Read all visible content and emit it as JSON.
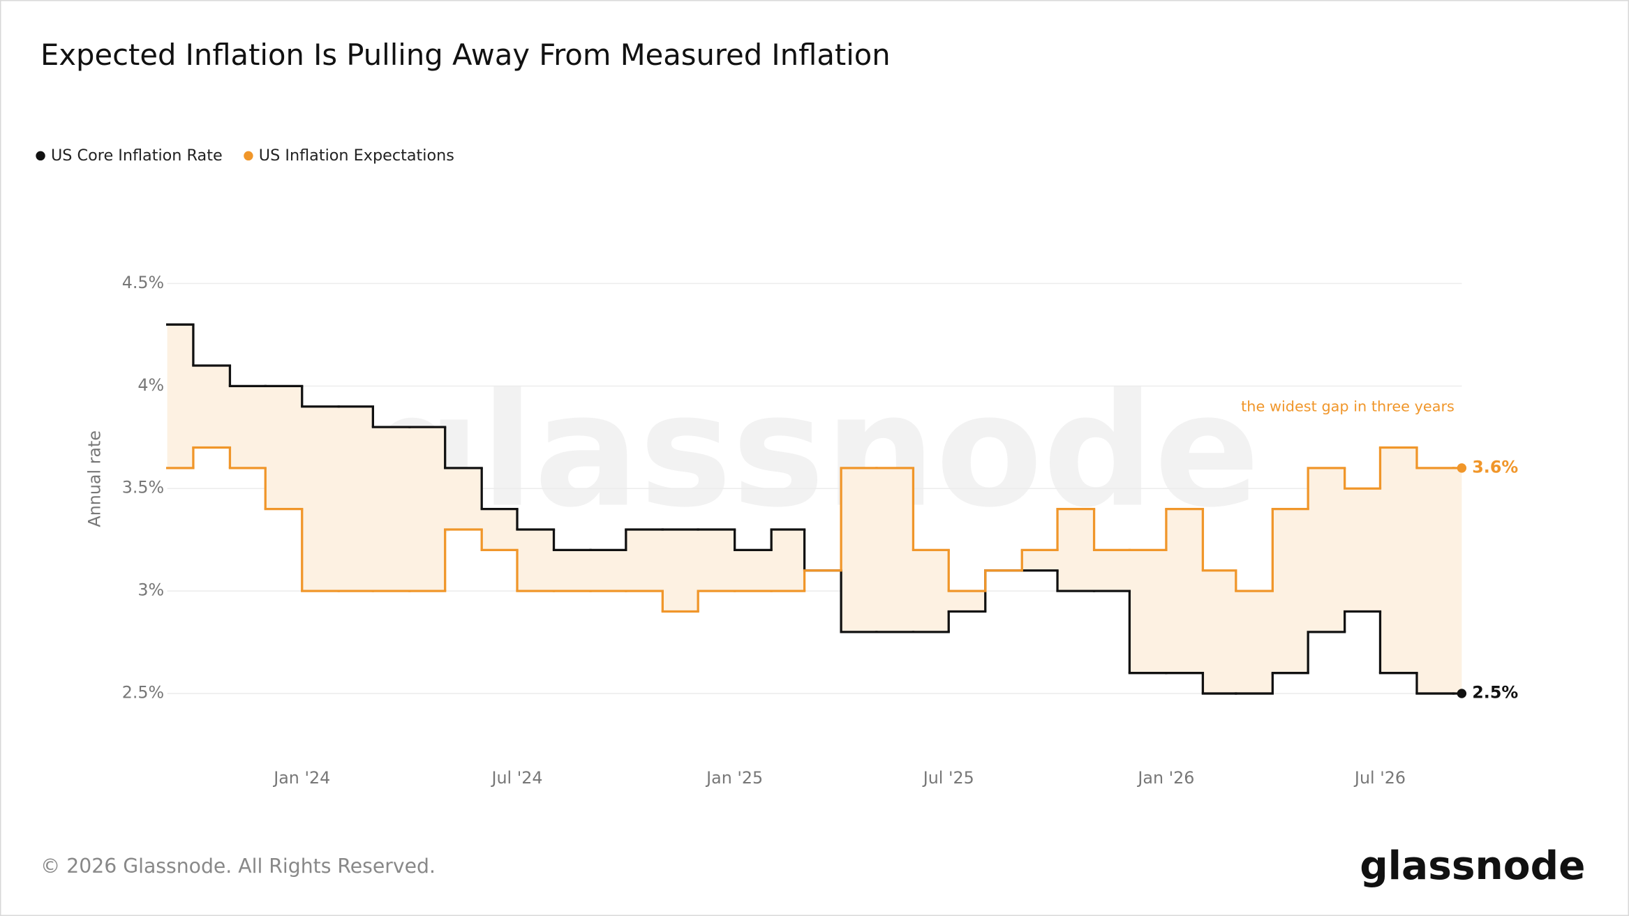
{
  "chart_data": {
    "type": "step",
    "title": "Expected Inflation Is Pulling Away From Measured Inflation",
    "y_label": "Annual rate",
    "annotation": "the widest gap in three years",
    "footer": "© 2026 Glassnode. All Rights Reserved.",
    "brand": "glassnode",
    "watermark": "glassnode",
    "x": [
      "2023-09",
      "2023-10",
      "2023-11",
      "2023-12",
      "2024-01",
      "2024-02",
      "2024-03",
      "2024-04",
      "2024-05",
      "2024-06",
      "2024-07",
      "2024-08",
      "2024-09",
      "2024-10",
      "2024-11",
      "2024-12",
      "2025-01",
      "2025-02",
      "2025-03",
      "2025-04",
      "2025-05",
      "2025-06",
      "2025-07",
      "2025-08",
      "2025-09",
      "2025-10",
      "2025-11",
      "2025-12",
      "2026-01",
      "2026-02",
      "2026-03",
      "2026-04",
      "2026-05",
      "2026-06",
      "2026-07",
      "2026-08",
      "2026-09"
    ],
    "series": [
      {
        "name": "US Core Inflation Rate",
        "color": "#111111",
        "last_label": "2.5%",
        "values": [
          4.3,
          4.1,
          4.0,
          4.0,
          3.9,
          3.9,
          3.8,
          3.8,
          3.6,
          3.4,
          3.3,
          3.2,
          3.2,
          3.3,
          3.3,
          3.3,
          3.2,
          3.3,
          3.1,
          2.8,
          2.8,
          2.8,
          2.9,
          3.1,
          3.1,
          3.0,
          3.0,
          2.6,
          2.6,
          2.5,
          2.5,
          2.6,
          2.8,
          2.9,
          2.6,
          2.5,
          2.5
        ]
      },
      {
        "name": "US Inflation Expectations",
        "color": "#f0962a",
        "last_label": "3.6%",
        "values": [
          3.6,
          3.7,
          3.6,
          3.4,
          3.0,
          3.0,
          3.0,
          3.0,
          3.3,
          3.2,
          3.0,
          3.0,
          3.0,
          3.0,
          2.9,
          3.0,
          3.0,
          3.0,
          3.1,
          3.6,
          3.6,
          3.2,
          3.0,
          3.1,
          3.2,
          3.4,
          3.2,
          3.2,
          3.4,
          3.1,
          3.0,
          3.4,
          3.6,
          3.5,
          3.7,
          3.6,
          3.6
        ]
      }
    ],
    "fill_between": "#fdf1e2",
    "xlim": [
      "2023-09-09",
      "2026-09-08"
    ],
    "xticks": [
      {
        "value": "2024-01",
        "label": "Jan '24"
      },
      {
        "value": "2024-07",
        "label": "Jul '24"
      },
      {
        "value": "2025-01",
        "label": "Jan '25"
      },
      {
        "value": "2025-07",
        "label": "Jul '25"
      },
      {
        "value": "2026-01",
        "label": "Jan '26"
      },
      {
        "value": "2026-07",
        "label": "Jul '26"
      }
    ],
    "ylim": [
      2.2,
      4.5
    ],
    "yticks": [
      {
        "value": 2.5,
        "label": "2.5%"
      },
      {
        "value": 3,
        "label": "3%"
      },
      {
        "value": 3.5,
        "label": "3.5%"
      },
      {
        "value": 4,
        "label": "4%"
      },
      {
        "value": 4.5,
        "label": "4.5%"
      }
    ],
    "grid": true,
    "legend": "top-left"
  }
}
